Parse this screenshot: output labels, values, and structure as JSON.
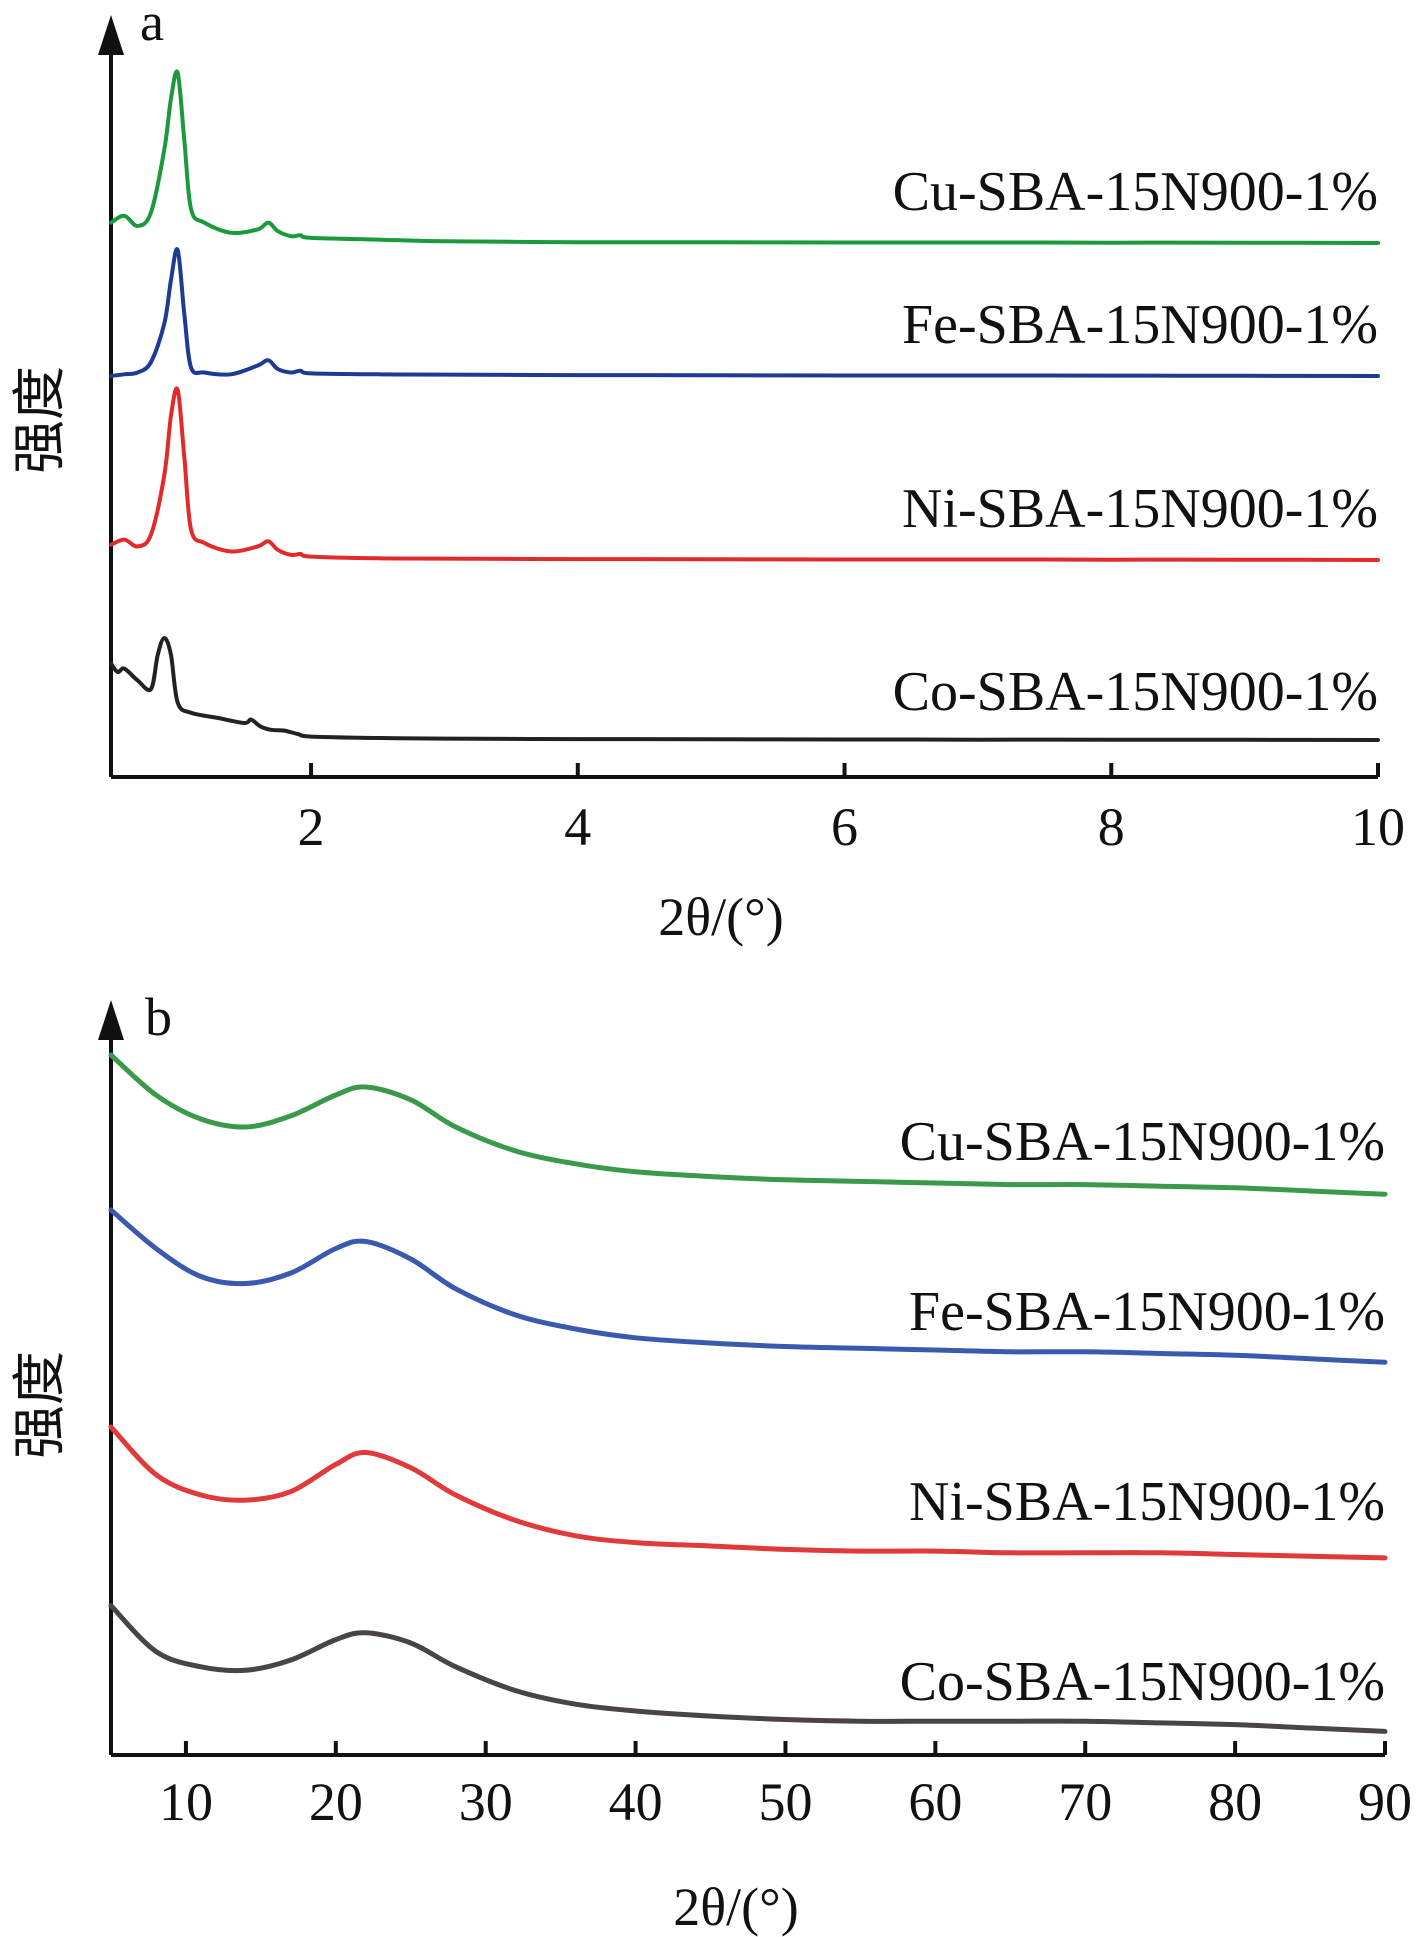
{
  "chart_data": [
    {
      "panel": "a",
      "type": "line",
      "xlabel": "2θ/(°)",
      "ylabel": "强度",
      "xlim": [
        0.5,
        10
      ],
      "xticks": [
        2,
        4,
        6,
        8,
        10
      ],
      "y_ticks_shown": false,
      "legend": "labels placed beside each curve at right",
      "offset_stacked": true,
      "series": [
        {
          "name": "Cu-SBA-15N900-1%",
          "color": "#1a9a3a",
          "x": [
            0.5,
            0.6,
            0.7,
            0.8,
            0.9,
            0.95,
            1.0,
            1.05,
            1.1,
            1.2,
            1.4,
            1.6,
            1.68,
            1.75,
            1.85,
            1.92,
            2.0,
            2.5,
            3,
            4,
            5,
            6,
            7,
            8,
            9,
            10
          ],
          "y": [
            0.12,
            0.16,
            0.1,
            0.18,
            0.55,
            0.85,
            1.0,
            0.6,
            0.2,
            0.12,
            0.06,
            0.08,
            0.12,
            0.07,
            0.04,
            0.045,
            0.03,
            0.02,
            0.01,
            0.005,
            0.004,
            0.003,
            0.003,
            0.002,
            0.002,
            0.0
          ]
        },
        {
          "name": "Fe-SBA-15N900-1%",
          "color": "#1f3a93",
          "x": [
            0.5,
            0.6,
            0.7,
            0.8,
            0.9,
            0.95,
            1.0,
            1.05,
            1.1,
            1.2,
            1.4,
            1.6,
            1.68,
            1.75,
            1.85,
            1.92,
            2.0,
            2.5,
            3,
            4,
            5,
            6,
            7,
            8,
            9,
            10
          ],
          "y": [
            0.0,
            0.01,
            0.02,
            0.08,
            0.3,
            0.55,
            0.72,
            0.35,
            0.05,
            0.02,
            0.01,
            0.06,
            0.09,
            0.04,
            0.02,
            0.03,
            0.015,
            0.01,
            0.008,
            0.005,
            0.004,
            0.003,
            0.003,
            0.002,
            0.001,
            0.0
          ]
        },
        {
          "name": "Ni-SBA-15N900-1%",
          "color": "#e12b2b",
          "x": [
            0.5,
            0.6,
            0.7,
            0.8,
            0.9,
            0.95,
            1.0,
            1.05,
            1.1,
            1.2,
            1.4,
            1.6,
            1.68,
            1.75,
            1.85,
            1.92,
            2.0,
            2.5,
            3,
            4,
            5,
            6,
            7,
            8,
            9,
            10
          ],
          "y": [
            0.09,
            0.12,
            0.08,
            0.15,
            0.5,
            0.85,
            1.0,
            0.6,
            0.18,
            0.1,
            0.05,
            0.08,
            0.11,
            0.06,
            0.03,
            0.035,
            0.02,
            0.01,
            0.008,
            0.005,
            0.004,
            0.003,
            0.003,
            0.002,
            0.002,
            0.0
          ]
        },
        {
          "name": "Co-SBA-15N900-1%",
          "color": "#222222",
          "x": [
            0.5,
            0.55,
            0.6,
            0.7,
            0.8,
            0.85,
            0.9,
            0.95,
            1.0,
            1.1,
            1.3,
            1.5,
            1.55,
            1.62,
            1.7,
            1.8,
            1.9,
            2.0,
            2.5,
            3,
            4,
            5,
            6,
            7,
            8,
            9,
            10
          ],
          "y": [
            0.45,
            0.4,
            0.42,
            0.35,
            0.3,
            0.5,
            0.6,
            0.5,
            0.22,
            0.16,
            0.13,
            0.1,
            0.12,
            0.08,
            0.06,
            0.055,
            0.035,
            0.02,
            0.012,
            0.008,
            0.005,
            0.004,
            0.003,
            0.002,
            0.002,
            0.001,
            0.0
          ]
        }
      ]
    },
    {
      "panel": "b",
      "type": "line",
      "xlabel": "2θ/(°)",
      "ylabel": "强度",
      "xlim": [
        5,
        90
      ],
      "xticks": [
        10,
        20,
        30,
        40,
        50,
        60,
        70,
        80,
        90
      ],
      "y_ticks_shown": false,
      "legend": "labels placed beside each curve at right",
      "offset_stacked": true,
      "series": [
        {
          "name": "Cu-SBA-15N900-1%",
          "color": "#3a9a4a",
          "x": [
            5,
            8,
            11,
            14,
            17,
            20,
            22,
            25,
            28,
            32,
            36,
            40,
            45,
            50,
            55,
            60,
            65,
            70,
            75,
            80,
            85,
            90
          ],
          "y": [
            1.0,
            0.75,
            0.6,
            0.55,
            0.62,
            0.75,
            0.8,
            0.72,
            0.55,
            0.4,
            0.32,
            0.27,
            0.24,
            0.22,
            0.21,
            0.2,
            0.19,
            0.19,
            0.18,
            0.17,
            0.15,
            0.13
          ]
        },
        {
          "name": "Fe-SBA-15N900-1%",
          "color": "#3a5ab0",
          "x": [
            5,
            8,
            11,
            14,
            17,
            20,
            22,
            25,
            28,
            32,
            36,
            40,
            45,
            50,
            55,
            60,
            65,
            70,
            75,
            80,
            85,
            90
          ],
          "y": [
            1.0,
            0.78,
            0.62,
            0.58,
            0.64,
            0.78,
            0.82,
            0.72,
            0.55,
            0.4,
            0.32,
            0.27,
            0.24,
            0.22,
            0.21,
            0.2,
            0.19,
            0.19,
            0.18,
            0.17,
            0.15,
            0.13
          ]
        },
        {
          "name": "Ni-SBA-15N900-1%",
          "color": "#e03a3a",
          "x": [
            5,
            8,
            11,
            14,
            17,
            20,
            22,
            25,
            28,
            32,
            36,
            40,
            45,
            50,
            55,
            60,
            65,
            70,
            75,
            80,
            85,
            90
          ],
          "y": [
            0.9,
            0.62,
            0.5,
            0.47,
            0.52,
            0.68,
            0.75,
            0.66,
            0.5,
            0.35,
            0.26,
            0.22,
            0.2,
            0.18,
            0.17,
            0.17,
            0.16,
            0.16,
            0.16,
            0.15,
            0.14,
            0.13
          ]
        },
        {
          "name": "Co-SBA-15N900-1%",
          "color": "#4a4444",
          "x": [
            5,
            8,
            11,
            14,
            17,
            20,
            22,
            25,
            28,
            32,
            36,
            40,
            45,
            50,
            55,
            60,
            65,
            70,
            75,
            80,
            85,
            90
          ],
          "y": [
            0.82,
            0.55,
            0.46,
            0.44,
            0.5,
            0.62,
            0.66,
            0.6,
            0.46,
            0.32,
            0.24,
            0.2,
            0.17,
            0.15,
            0.14,
            0.14,
            0.14,
            0.14,
            0.13,
            0.12,
            0.1,
            0.08
          ]
        }
      ]
    }
  ]
}
